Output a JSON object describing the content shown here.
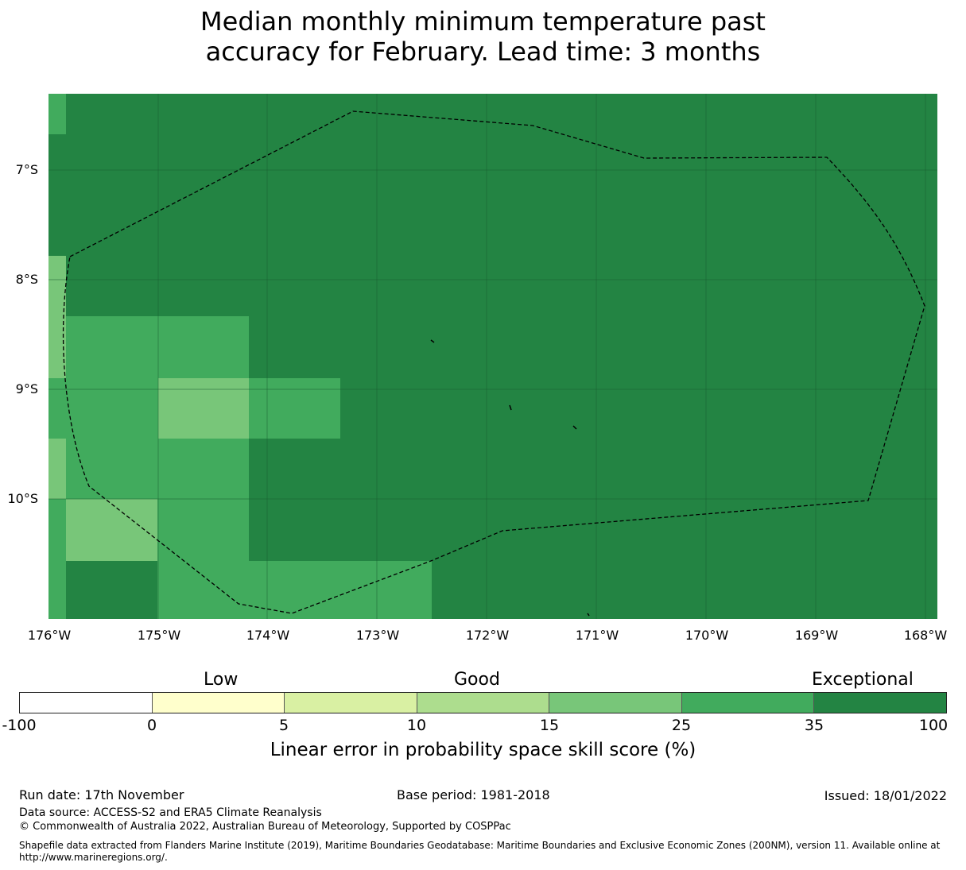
{
  "title_line1": "Median monthly minimum temperature past",
  "title_line2": "accuracy for February. Lead time: 3 months",
  "map": {
    "lat_labels": [
      "7°S",
      "8°S",
      "9°S",
      "10°S"
    ],
    "lon_labels": [
      "176°W",
      "175°W",
      "174°W",
      "173°W",
      "172°W",
      "171°W",
      "170°W",
      "169°W",
      "168°W"
    ],
    "colors": {
      "exceptional_35_100": "#238443",
      "band_25_35": "#41ab5d",
      "band_15_25": "#78c679",
      "boundary": "#000000",
      "gridline": "#1a5c30"
    }
  },
  "legend": {
    "category_low": "Low",
    "category_good": "Good",
    "category_exceptional": "Exceptional",
    "bins": [
      {
        "from": -100,
        "to": 0,
        "color": "#ffffff"
      },
      {
        "from": 0,
        "to": 5,
        "color": "#ffffcc"
      },
      {
        "from": 5,
        "to": 10,
        "color": "#d9f0a3"
      },
      {
        "from": 10,
        "to": 15,
        "color": "#addd8e"
      },
      {
        "from": 15,
        "to": 25,
        "color": "#78c679"
      },
      {
        "from": 25,
        "to": 35,
        "color": "#41ab5d"
      },
      {
        "from": 35,
        "to": 100,
        "color": "#238443"
      }
    ],
    "ticks": [
      "-100",
      "0",
      "5",
      "10",
      "15",
      "25",
      "35",
      "100"
    ],
    "label": "Linear error in probability space skill score (%)"
  },
  "footer": {
    "run_date": "Run date: 17th November",
    "base_period": "Base period: 1981-2018",
    "issued": "Issued: 18/01/2022",
    "data_source": "Data source: ACCESS-S2 and ERA5 Climate Reanalysis",
    "copyright": "© Commonwealth of Australia 2022, Australian Bureau of Meteorology, Supported by COSPPac",
    "shapefile_note": "Shapefile data extracted from Flanders Marine Institute (2019), Maritime Boundaries Geodatabase: Maritime Boundaries and Exclusive Economic Zones (200NM), version 11. Available online at http://www.marineregions.org/."
  }
}
